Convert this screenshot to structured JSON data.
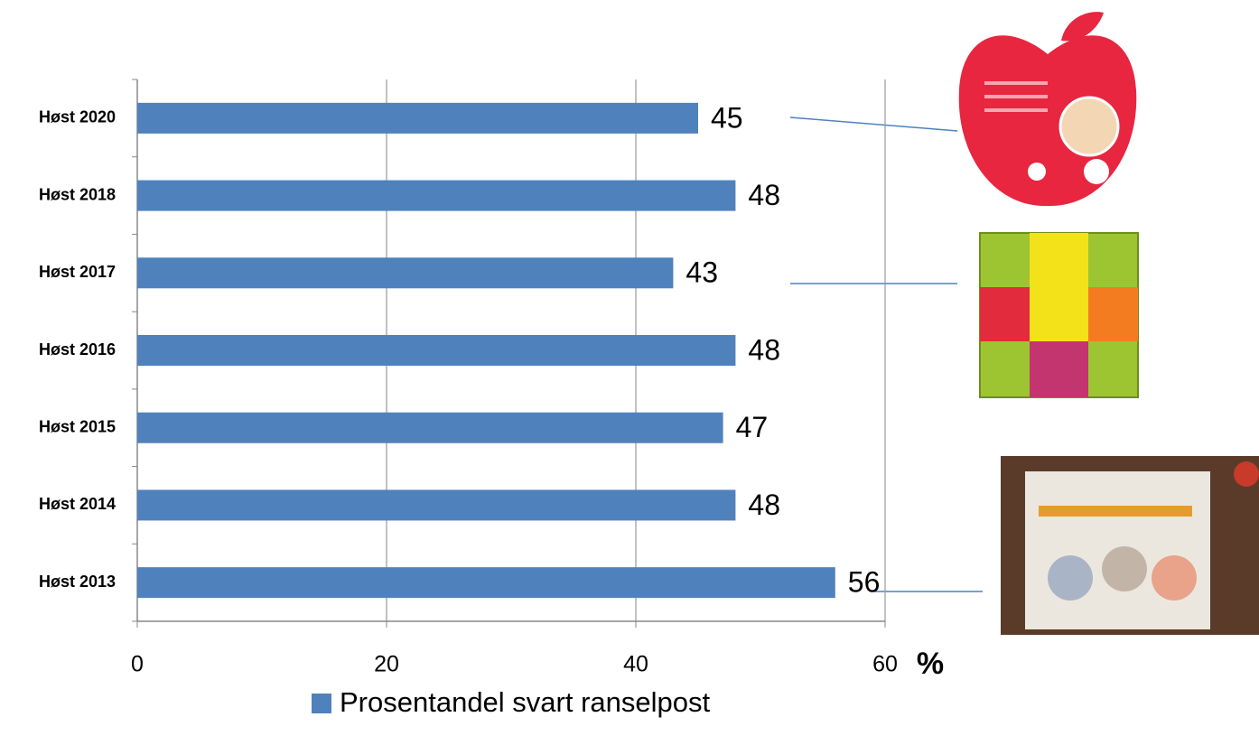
{
  "chart_data": {
    "type": "hbar",
    "x_label": "%",
    "categories": [
      "Høst 2020",
      "Høst 2018",
      "Høst 2017",
      "Høst 2016",
      "Høst 2015",
      "Høst 2014",
      "Høst 2013"
    ],
    "series": [
      {
        "name": "Prosentandel svart ranselpost",
        "color": "#4f81bd",
        "values": [
          45,
          48,
          43,
          48,
          47,
          48,
          56
        ]
      }
    ],
    "xlim": [
      0,
      60
    ],
    "xticks": [
      0,
      20,
      40,
      60
    ],
    "grid": true
  }
}
